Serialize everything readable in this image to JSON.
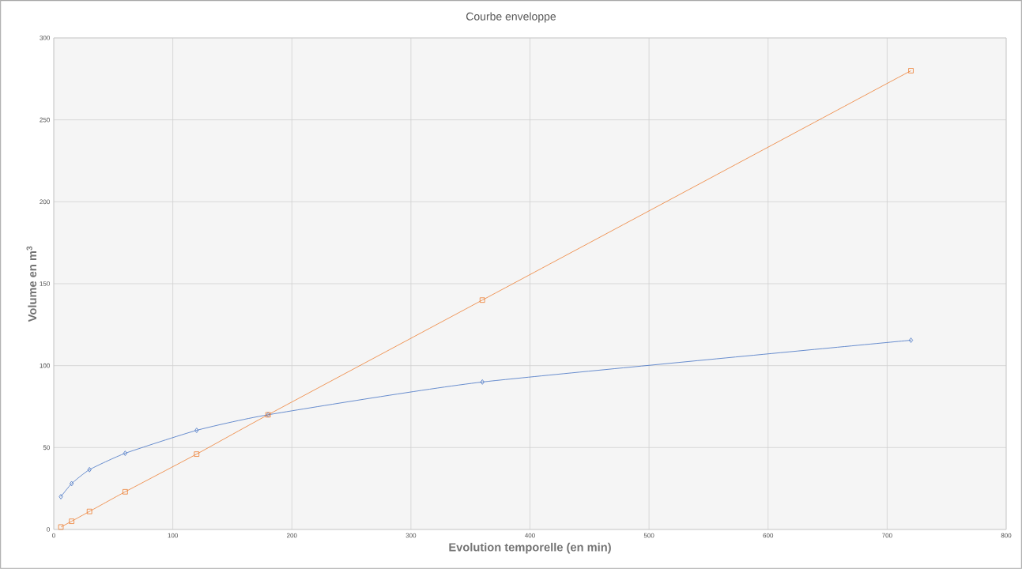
{
  "chart_data": {
    "type": "line",
    "title": "Courbe enveloppe",
    "xlabel": "Evolution temporelle (en min)",
    "ylabel": "Volume en m$^{3}$",
    "series": [
      {
        "color": "#4472c4",
        "marker": "diamond",
        "x": [
          6,
          15,
          30,
          60,
          120,
          180,
          360,
          720
        ],
        "values": [
          20,
          28,
          36.5,
          46.5,
          60.5,
          70,
          90,
          115.5
        ]
      },
      {
        "color": "#ed7d31",
        "marker": "square",
        "x": [
          6,
          15,
          30,
          60,
          120,
          180,
          360,
          720
        ],
        "values": [
          1.5,
          5,
          11,
          23,
          46,
          70,
          140,
          280
        ]
      }
    ],
    "xlim": [
      0,
      800
    ],
    "xticks": [
      0,
      100,
      200,
      300,
      400,
      500,
      600,
      700,
      800
    ],
    "ylim": [
      0,
      300
    ],
    "yticks": [
      0,
      50,
      100,
      150,
      200,
      250,
      300
    ],
    "grid": true
  }
}
